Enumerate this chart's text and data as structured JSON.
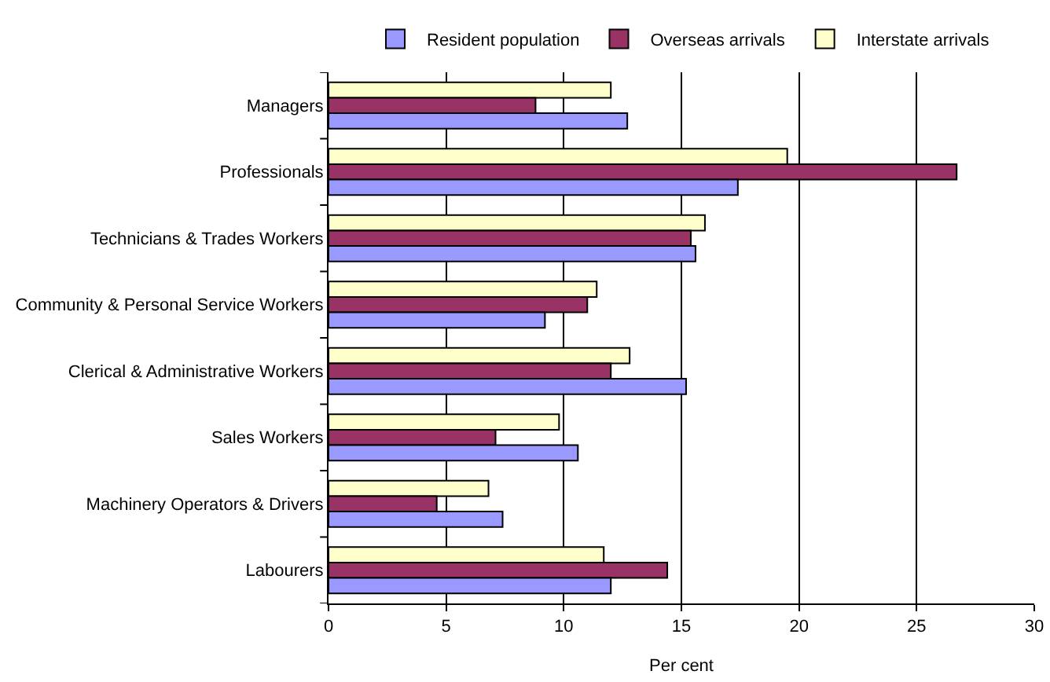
{
  "chart_data": {
    "type": "bar",
    "orientation": "horizontal",
    "xlabel": "Per cent",
    "categories": [
      "Managers",
      "Professionals",
      "Technicians & Trades Workers",
      "Community & Personal Service Workers",
      "Clerical & Administrative Workers",
      "Sales Workers",
      "Machinery Operators & Drivers",
      "Labourers"
    ],
    "series": [
      {
        "name": "Resident population",
        "color": "#9999ff",
        "values": [
          12.7,
          17.4,
          15.6,
          9.2,
          15.2,
          10.6,
          7.4,
          12.0
        ]
      },
      {
        "name": "Overseas arrivals",
        "color": "#993366",
        "values": [
          8.8,
          26.7,
          15.4,
          11.0,
          12.0,
          7.1,
          4.6,
          14.4
        ]
      },
      {
        "name": "Interstate arrivals",
        "color": "#ffffcc",
        "values": [
          12.0,
          19.5,
          16.0,
          11.4,
          12.8,
          9.8,
          6.8,
          11.7
        ]
      }
    ],
    "xlim": [
      0,
      30
    ],
    "xticks": [
      0,
      5,
      10,
      15,
      20,
      25,
      30
    ],
    "grid": "x",
    "legend": "top"
  }
}
